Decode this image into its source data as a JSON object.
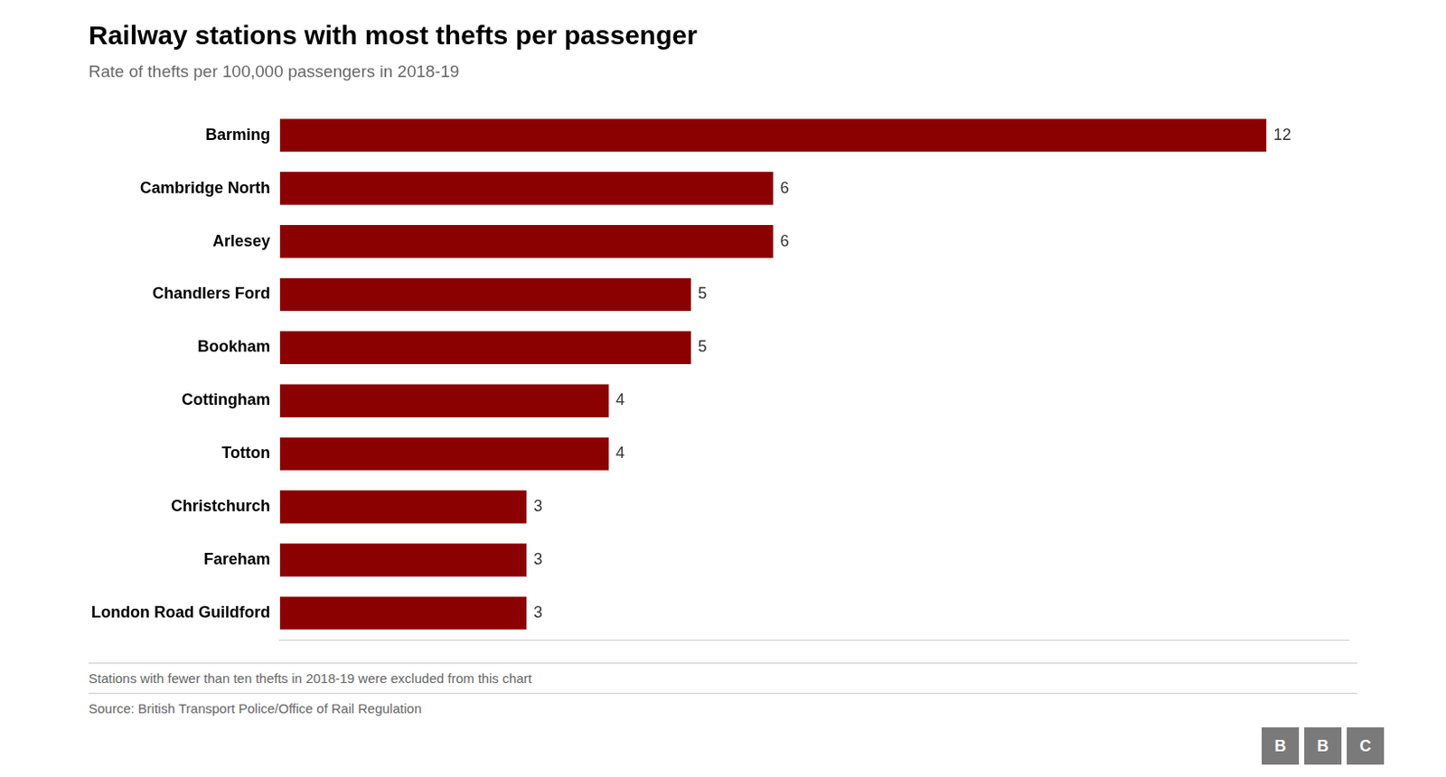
{
  "chart_data": {
    "type": "bar",
    "orientation": "horizontal",
    "title": "Railway stations with most thefts per passenger",
    "subtitle": "Rate of thefts per 100,000 passengers in 2018-19",
    "categories": [
      "Barming",
      "Cambridge North",
      "Arlesey",
      "Chandlers Ford",
      "Bookham",
      "Cottingham",
      "Totton",
      "Christchurch",
      "Fareham",
      "London Road Guildford"
    ],
    "values": [
      12,
      6,
      6,
      5,
      5,
      4,
      4,
      3,
      3,
      3
    ],
    "color": "#8B0000",
    "xlim": [
      0,
      13
    ],
    "grid": false,
    "legend": false,
    "data_labels": true,
    "tick_labels": "y",
    "footnote": "Stations with fewer than ten thefts in 2018-19 were excluded from this chart",
    "source": "Source: British Transport Police/Office of Rail Regulation",
    "logo": "BBC"
  }
}
